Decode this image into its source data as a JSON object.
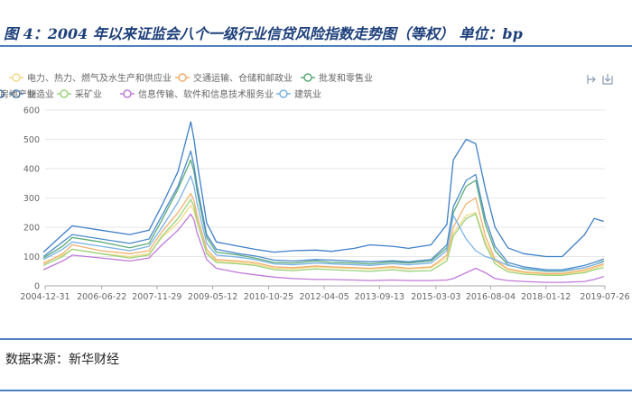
{
  "header": {
    "title": "图 4：2004 年以来证监会八个一级行业信贷风险指数走势图（等权）  单位：bp"
  },
  "source": {
    "text": "数据来源：新华财经"
  },
  "toolbox": {
    "icons": [
      "restore-icon",
      "save-image-icon"
    ]
  },
  "colors": {
    "rule": "#4f81bd",
    "title": "#1d3f7a"
  },
  "chart_data": {
    "type": "line",
    "title": "图 4：2004 年以来证监会八个一级行业信贷风险指数走势图（等权）",
    "unit": "bp",
    "ylim": [
      0,
      600
    ],
    "yticks": [
      0,
      100,
      200,
      300,
      400,
      500,
      600
    ],
    "xlim": [
      "2004-12-31",
      "2019-07-26"
    ],
    "xticks": [
      "2004-12-31",
      "2006-06-22",
      "2007-11-29",
      "2009-05-12",
      "2010-10-25",
      "2012-04-05",
      "2013-09-13",
      "2015-03-03",
      "2016-08-04",
      "2018-01-12",
      "2019-07-26"
    ],
    "grid": "horizontal",
    "legend_position": "top",
    "x": [
      "2004-12",
      "2005-06",
      "2005-09",
      "2006-06",
      "2007-03",
      "2007-09",
      "2008-01",
      "2008-06",
      "2008-10",
      "2008-11",
      "2008-12",
      "2009-03",
      "2009-06",
      "2010-01",
      "2010-06",
      "2010-12",
      "2011-06",
      "2012-01",
      "2012-06",
      "2013-01",
      "2013-06",
      "2014-01",
      "2014-06",
      "2015-01",
      "2015-06",
      "2015-08",
      "2015-12",
      "2016-03",
      "2016-06",
      "2016-09",
      "2017-01",
      "2017-06",
      "2018-01",
      "2018-06",
      "2019-01",
      "2019-04",
      "2019-07"
    ],
    "series": [
      {
        "name": "电力、热力、燃气及水生产和供应业",
        "color": "#f3d98a",
        "values": [
          80,
          105,
          125,
          110,
          100,
          110,
          165,
          215,
          275,
          255,
          215,
          115,
          85,
          80,
          75,
          60,
          58,
          65,
          62,
          60,
          58,
          62,
          58,
          62,
          95,
          180,
          240,
          250,
          150,
          85,
          55,
          45,
          40,
          40,
          50,
          60,
          70
        ]
      },
      {
        "name": "交通运输、仓储和邮政业",
        "color": "#f1b06e",
        "values": [
          75,
          110,
          140,
          120,
          110,
          120,
          185,
          250,
          315,
          290,
          240,
          125,
          90,
          85,
          80,
          65,
          62,
          68,
          65,
          62,
          60,
          66,
          60,
          65,
          105,
          200,
          280,
          300,
          170,
          90,
          58,
          48,
          42,
          42,
          55,
          65,
          75
        ]
      },
      {
        "name": "批发和零售业",
        "color": "#5aaa78",
        "values": [
          95,
          135,
          165,
          150,
          130,
          145,
          225,
          330,
          430,
          390,
          320,
          165,
          115,
          105,
          95,
          80,
          78,
          85,
          80,
          78,
          75,
          82,
          78,
          85,
          130,
          250,
          340,
          360,
          210,
          120,
          72,
          58,
          50,
          50,
          62,
          72,
          85
        ]
      },
      {
        "name": "制造业",
        "color": "#4d8bcb",
        "values": [
          100,
          150,
          175,
          160,
          145,
          160,
          240,
          340,
          460,
          410,
          340,
          175,
          125,
          110,
          102,
          88,
          85,
          90,
          88,
          84,
          82,
          86,
          82,
          90,
          140,
          270,
          360,
          380,
          230,
          135,
          80,
          65,
          55,
          55,
          70,
          80,
          92
        ]
      },
      {
        "name": "采矿业",
        "color": "#9bd27a",
        "values": [
          70,
          100,
          125,
          110,
          95,
          105,
          170,
          230,
          295,
          270,
          220,
          110,
          80,
          75,
          70,
          55,
          52,
          58,
          55,
          52,
          50,
          55,
          50,
          52,
          85,
          170,
          230,
          245,
          140,
          75,
          48,
          40,
          36,
          36,
          45,
          55,
          62
        ]
      },
      {
        "name": "信息传输、软件和信息技术服务业",
        "color": "#c07ad8",
        "values": [
          55,
          85,
          105,
          95,
          85,
          95,
          140,
          190,
          245,
          225,
          180,
          90,
          60,
          45,
          38,
          30,
          25,
          22,
          22,
          20,
          18,
          20,
          18,
          18,
          20,
          25,
          45,
          60,
          45,
          25,
          18,
          15,
          12,
          12,
          15,
          22,
          32
        ]
      },
      {
        "name": "建筑业",
        "color": "#7ab2e6",
        "values": [
          90,
          125,
          150,
          135,
          120,
          135,
          200,
          285,
          375,
          340,
          280,
          145,
          105,
          98,
          90,
          75,
          72,
          78,
          75,
          72,
          70,
          76,
          72,
          78,
          120,
          240,
          160,
          120,
          100,
          90,
          70,
          60,
          52,
          52,
          62,
          72,
          82
        ]
      },
      {
        "name": "房地产业",
        "color": "#3f7fc8",
        "values": [
          115,
          175,
          205,
          190,
          175,
          190,
          275,
          390,
          560,
          500,
          420,
          215,
          150,
          135,
          125,
          115,
          120,
          122,
          118,
          128,
          140,
          135,
          128,
          140,
          210,
          430,
          500,
          485,
          330,
          200,
          130,
          110,
          100,
          100,
          175,
          230,
          220
        ]
      }
    ]
  }
}
